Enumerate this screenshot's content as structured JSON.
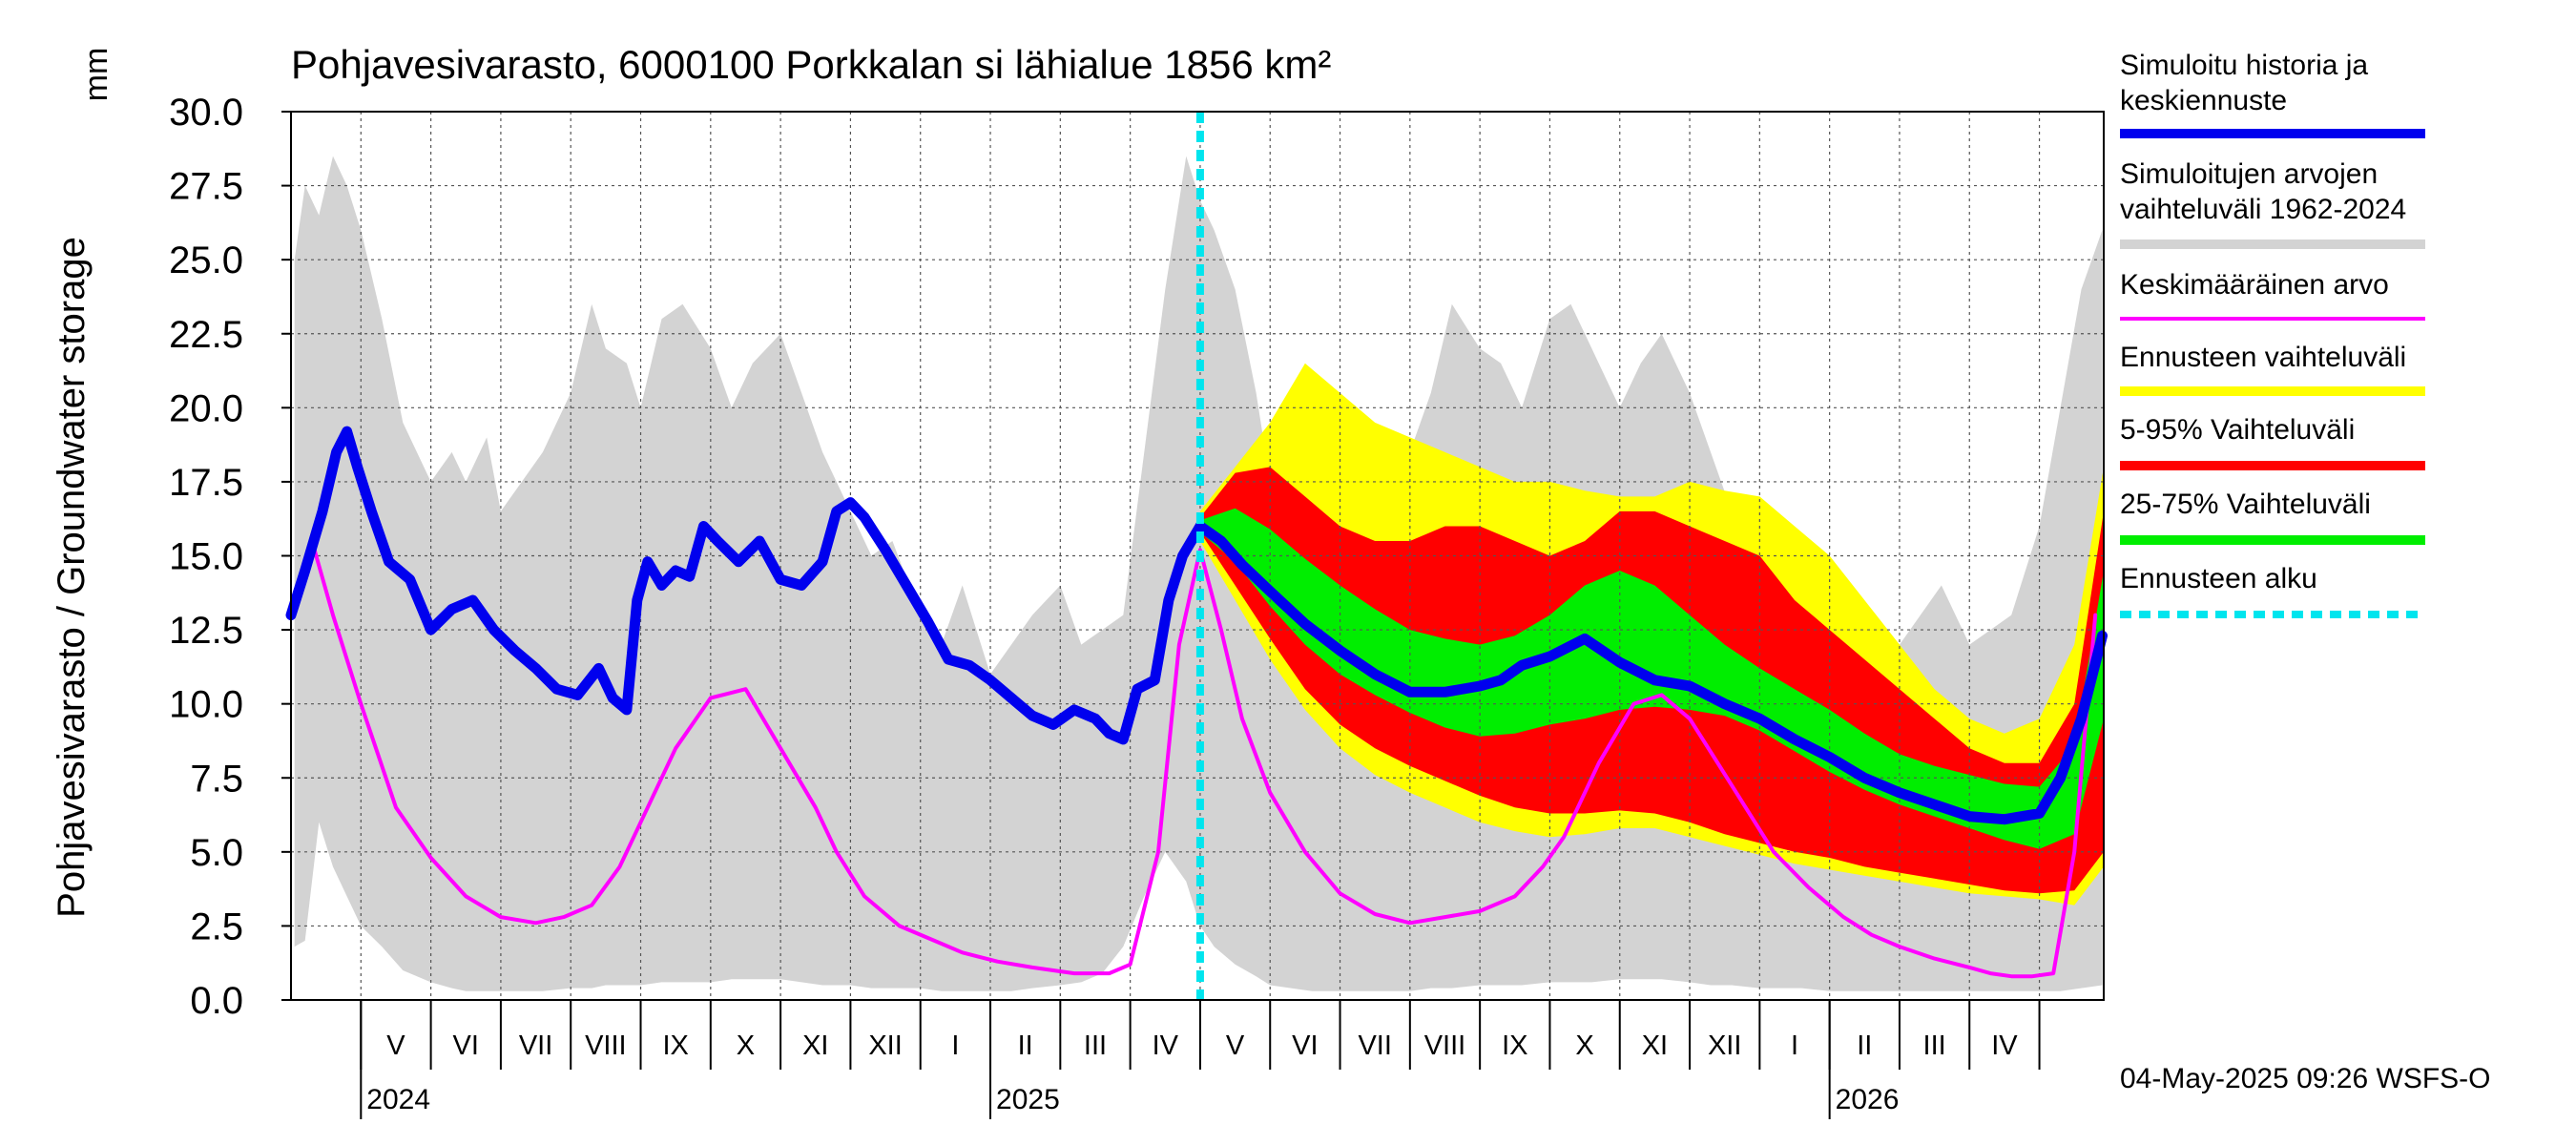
{
  "chart_data": {
    "type": "area",
    "title": "Pohjavesivarasto, 6000100 Porkkalan si lähialue 1856 km²",
    "ylabel": "Pohjavesivarasto / Groundwater storage",
    "yunit": "mm",
    "ylim": [
      0,
      30
    ],
    "yticks": [
      "30.0",
      "27.5",
      "25.0",
      "22.5",
      "20.0",
      "17.5",
      "15.0",
      "12.5",
      "10.0",
      "7.5",
      "5.0",
      "2.5",
      "0.0"
    ],
    "x_unit": "months since start of Apr 2024",
    "xlim": [
      0,
      25.92
    ],
    "forecast_start": 13,
    "months": [
      "V",
      "VI",
      "VII",
      "VIII",
      "IX",
      "X",
      "XI",
      "XII",
      "I",
      "II",
      "III",
      "IV",
      "V",
      "VI",
      "VII",
      "VIII",
      "IX",
      "X",
      "XI",
      "XII",
      "I",
      "II",
      "III",
      "IV"
    ],
    "years": [
      {
        "label": "2024",
        "month_index": 0
      },
      {
        "label": "2025",
        "month_index": 9
      },
      {
        "label": "2026",
        "month_index": 21
      }
    ],
    "series": [
      {
        "name": "Simuloitujen arvojen vaihteluväli 1962-2024",
        "kind": "band",
        "color": "#d3d3d3",
        "x": [
          0.05,
          0.2,
          0.4,
          0.6,
          0.8,
          1.0,
          1.3,
          1.6,
          2.0,
          2.3,
          2.5,
          2.8,
          3.0,
          3.3,
          3.6,
          4.0,
          4.3,
          4.5,
          4.8,
          5.0,
          5.3,
          5.6,
          6.0,
          6.3,
          6.6,
          7.0,
          7.3,
          7.6,
          8.0,
          8.3,
          8.6,
          9.0,
          9.3,
          9.6,
          10.0,
          10.3,
          10.6,
          11.0,
          11.3,
          11.6,
          11.9,
          12.2,
          12.5,
          12.8,
          13.0,
          13.2,
          13.5,
          13.8,
          14.0,
          14.3,
          14.6,
          15.0,
          15.3,
          15.6,
          16.0,
          16.3,
          16.6,
          17.0,
          17.3,
          17.6,
          18.0,
          18.3,
          18.6,
          19.0,
          19.3,
          19.6,
          20.0,
          20.3,
          20.6,
          21.0,
          21.3,
          21.6,
          22.0,
          22.3,
          22.6,
          23.0,
          23.3,
          23.6,
          24.0,
          24.3,
          24.6,
          25.0,
          25.3,
          25.6,
          25.9
        ],
        "low": [
          1.8,
          2.0,
          6.0,
          4.5,
          3.5,
          2.5,
          1.8,
          1.0,
          0.6,
          0.4,
          0.3,
          0.3,
          0.3,
          0.3,
          0.3,
          0.4,
          0.4,
          0.5,
          0.5,
          0.5,
          0.6,
          0.6,
          0.6,
          0.7,
          0.7,
          0.7,
          0.6,
          0.5,
          0.5,
          0.4,
          0.4,
          0.4,
          0.3,
          0.3,
          0.3,
          0.3,
          0.4,
          0.5,
          0.6,
          0.9,
          1.8,
          3.5,
          5.0,
          4.0,
          2.5,
          1.8,
          1.2,
          0.8,
          0.5,
          0.4,
          0.3,
          0.3,
          0.3,
          0.3,
          0.3,
          0.4,
          0.4,
          0.5,
          0.5,
          0.5,
          0.6,
          0.6,
          0.6,
          0.7,
          0.7,
          0.7,
          0.6,
          0.5,
          0.5,
          0.4,
          0.4,
          0.4,
          0.3,
          0.3,
          0.3,
          0.3,
          0.3,
          0.3,
          0.3,
          0.3,
          0.3,
          0.3,
          0.3,
          0.4,
          0.5
        ],
        "high": [
          25.0,
          27.5,
          26.5,
          28.5,
          27.5,
          26.0,
          23.0,
          19.5,
          17.5,
          18.5,
          17.5,
          19.0,
          16.5,
          17.5,
          18.5,
          20.5,
          23.5,
          22.0,
          21.5,
          20.0,
          23.0,
          23.5,
          22.0,
          20.0,
          21.5,
          22.5,
          20.5,
          18.5,
          16.5,
          15.0,
          15.5,
          13.0,
          12.0,
          14.0,
          11.0,
          12.0,
          13.0,
          14.0,
          12.0,
          12.5,
          13.0,
          18.5,
          24.0,
          28.5,
          27.0,
          26.0,
          24.0,
          20.5,
          17.5,
          18.5,
          17.5,
          19.0,
          16.5,
          17.5,
          18.5,
          20.5,
          23.5,
          22.0,
          21.5,
          20.0,
          23.0,
          23.5,
          22.0,
          20.0,
          21.5,
          22.5,
          20.5,
          18.5,
          16.5,
          15.0,
          15.5,
          13.0,
          12.0,
          14.0,
          11.0,
          12.0,
          13.0,
          14.0,
          12.0,
          12.5,
          13.0,
          16.0,
          20.0,
          24.0,
          26.0
        ]
      },
      {
        "name": "Ennusteen vaihteluväli",
        "kind": "band",
        "color": "#ffff00",
        "x": [
          13.0,
          13.5,
          14.0,
          14.5,
          15.0,
          15.5,
          16.0,
          16.5,
          17.0,
          17.5,
          18.0,
          18.5,
          19.0,
          19.5,
          20.0,
          20.5,
          21.0,
          21.5,
          22.0,
          22.5,
          23.0,
          23.5,
          24.0,
          24.5,
          25.0,
          25.5,
          25.92
        ],
        "low": [
          15.5,
          13.5,
          11.5,
          9.8,
          8.5,
          7.6,
          7.0,
          6.5,
          6.0,
          5.7,
          5.5,
          5.6,
          5.8,
          5.8,
          5.5,
          5.2,
          4.9,
          4.6,
          4.4,
          4.2,
          4.0,
          3.8,
          3.6,
          3.5,
          3.4,
          3.2,
          4.5
        ],
        "high": [
          16.5,
          18.0,
          19.5,
          21.5,
          20.5,
          19.5,
          19.0,
          18.5,
          18.0,
          17.5,
          17.5,
          17.2,
          17.0,
          17.0,
          17.5,
          17.2,
          17.0,
          16.0,
          15.0,
          13.5,
          12.0,
          10.5,
          9.5,
          9.0,
          9.5,
          12.0,
          18.0
        ]
      },
      {
        "name": "5-95% Vaihteluväli",
        "kind": "band",
        "color": "#ff0000",
        "x": [
          13.0,
          13.5,
          14.0,
          14.5,
          15.0,
          15.5,
          16.0,
          16.5,
          17.0,
          17.5,
          18.0,
          18.5,
          19.0,
          19.5,
          20.0,
          20.5,
          21.0,
          21.5,
          22.0,
          22.5,
          23.0,
          23.5,
          24.0,
          24.5,
          25.0,
          25.5,
          25.92
        ],
        "low": [
          15.8,
          14.0,
          12.2,
          10.5,
          9.3,
          8.5,
          7.9,
          7.4,
          6.9,
          6.5,
          6.3,
          6.3,
          6.4,
          6.3,
          6.0,
          5.6,
          5.3,
          5.0,
          4.8,
          4.5,
          4.3,
          4.1,
          3.9,
          3.7,
          3.6,
          3.7,
          5.0
        ],
        "high": [
          16.3,
          17.8,
          18.0,
          17.0,
          16.0,
          15.5,
          15.5,
          16.0,
          16.0,
          15.5,
          15.0,
          15.5,
          16.5,
          16.5,
          16.0,
          15.5,
          15.0,
          13.5,
          12.5,
          11.5,
          10.5,
          9.5,
          8.5,
          8.0,
          8.0,
          10.0,
          16.5
        ]
      },
      {
        "name": "25-75% Vaihteluväli",
        "kind": "band",
        "color": "#00ee00",
        "x": [
          13.0,
          13.5,
          14.0,
          14.5,
          15.0,
          15.5,
          16.0,
          16.5,
          17.0,
          17.5,
          18.0,
          18.5,
          19.0,
          19.5,
          20.0,
          20.5,
          21.0,
          21.5,
          22.0,
          22.5,
          23.0,
          23.5,
          24.0,
          24.5,
          25.0,
          25.5,
          25.92
        ],
        "low": [
          15.8,
          14.8,
          13.3,
          12.0,
          11.0,
          10.3,
          9.7,
          9.2,
          8.9,
          9.0,
          9.3,
          9.5,
          9.8,
          9.9,
          9.8,
          9.6,
          9.1,
          8.4,
          7.7,
          7.1,
          6.6,
          6.2,
          5.8,
          5.4,
          5.1,
          5.6,
          9.5
        ],
        "high": [
          16.2,
          16.6,
          15.9,
          14.9,
          14.0,
          13.2,
          12.5,
          12.2,
          12.0,
          12.3,
          13.0,
          14.0,
          14.5,
          14.0,
          13.0,
          12.0,
          11.2,
          10.5,
          9.8,
          9.0,
          8.3,
          7.9,
          7.6,
          7.3,
          7.2,
          8.6,
          14.5
        ]
      },
      {
        "name": "Keskimääräinen arvo",
        "kind": "line",
        "color": "#ff00ff",
        "x": [
          0.0,
          0.3,
          0.6,
          1.0,
          1.5,
          2.0,
          2.5,
          3.0,
          3.5,
          3.9,
          4.3,
          4.7,
          5.0,
          5.5,
          6.0,
          6.5,
          7.0,
          7.5,
          7.8,
          8.2,
          8.7,
          9.2,
          9.6,
          10.1,
          10.6,
          11.2,
          11.7,
          12.0,
          12.4,
          12.7,
          13.0,
          13.3,
          13.6,
          14.0,
          14.5,
          15.0,
          15.5,
          16.0,
          16.5,
          17.0,
          17.5,
          17.9,
          18.2,
          18.7,
          19.2,
          19.6,
          20.0,
          20.4,
          20.8,
          21.2,
          21.7,
          22.2,
          22.6,
          23.0,
          23.5,
          24.0,
          24.3,
          24.6,
          24.9,
          25.2,
          25.5,
          25.8
        ],
        "values": [
          13.0,
          15.5,
          13.0,
          10.0,
          6.5,
          4.8,
          3.5,
          2.8,
          2.6,
          2.8,
          3.2,
          4.5,
          6.0,
          8.5,
          10.2,
          10.5,
          8.5,
          6.5,
          5.0,
          3.5,
          2.5,
          2.0,
          1.6,
          1.3,
          1.1,
          0.9,
          0.9,
          1.2,
          5.0,
          12.0,
          15.2,
          12.5,
          9.5,
          7.0,
          5.0,
          3.6,
          2.9,
          2.6,
          2.8,
          3.0,
          3.5,
          4.5,
          5.5,
          8.0,
          10.0,
          10.3,
          9.5,
          8.0,
          6.5,
          5.0,
          3.8,
          2.8,
          2.2,
          1.8,
          1.4,
          1.1,
          0.9,
          0.8,
          0.8,
          0.9,
          5.0,
          13.0
        ]
      },
      {
        "name": "Simuloitu historia ja keskiennuste",
        "kind": "line",
        "color": "#0000ee",
        "x": [
          0.0,
          0.2,
          0.45,
          0.65,
          0.8,
          0.95,
          1.15,
          1.4,
          1.7,
          2.0,
          2.3,
          2.6,
          2.9,
          3.2,
          3.5,
          3.8,
          4.1,
          4.4,
          4.6,
          4.8,
          4.95,
          5.1,
          5.3,
          5.5,
          5.7,
          5.9,
          6.1,
          6.4,
          6.7,
          7.0,
          7.3,
          7.6,
          7.8,
          8.0,
          8.2,
          8.5,
          8.8,
          9.1,
          9.4,
          9.7,
          10.0,
          10.3,
          10.6,
          10.9,
          11.2,
          11.5,
          11.7,
          11.9,
          12.1,
          12.35,
          12.55,
          12.75,
          13.0,
          13.3,
          13.6,
          14.0,
          14.5,
          15.0,
          15.5,
          16.0,
          16.5,
          17.0,
          17.3,
          17.6,
          18.0,
          18.5,
          19.0,
          19.5,
          20.0,
          20.5,
          21.0,
          21.5,
          22.0,
          22.5,
          23.0,
          23.5,
          24.0,
          24.5,
          25.0,
          25.3,
          25.6,
          25.9
        ],
        "values": [
          13.0,
          14.5,
          16.5,
          18.5,
          19.2,
          18.0,
          16.5,
          14.8,
          14.2,
          12.5,
          13.2,
          13.5,
          12.5,
          11.8,
          11.2,
          10.5,
          10.3,
          11.2,
          10.2,
          9.8,
          13.5,
          14.8,
          14.0,
          14.5,
          14.3,
          16.0,
          15.5,
          14.8,
          15.5,
          14.2,
          14.0,
          14.8,
          16.5,
          16.8,
          16.3,
          15.2,
          14.0,
          12.8,
          11.5,
          11.3,
          10.8,
          10.2,
          9.6,
          9.3,
          9.8,
          9.5,
          9.0,
          8.8,
          10.5,
          10.8,
          13.5,
          15.0,
          16.0,
          15.5,
          14.7,
          13.8,
          12.7,
          11.8,
          11.0,
          10.4,
          10.4,
          10.6,
          10.8,
          11.3,
          11.6,
          12.2,
          11.4,
          10.8,
          10.6,
          10.0,
          9.5,
          8.8,
          8.2,
          7.5,
          7.0,
          6.6,
          6.2,
          6.1,
          6.3,
          7.5,
          9.5,
          12.3
        ]
      },
      {
        "name": "Ennusteen alku",
        "kind": "vline",
        "color": "#00e5ee"
      }
    ],
    "legend_position": "right",
    "grid": true
  },
  "legend": {
    "items": [
      {
        "label": "Simuloitu historia ja keskiennuste",
        "lines": [
          "Simuloitu historia ja",
          "keskiennuste"
        ],
        "color": "#0000ee"
      },
      {
        "label": "Simuloitujen arvojen vaihteluväli 1962-2024",
        "lines": [
          "Simuloitujen arvojen",
          "vaihteluväli 1962-2024"
        ],
        "color": "#d3d3d3"
      },
      {
        "label": "Keskimääräinen arvo",
        "lines": [
          "Keskimääräinen arvo"
        ],
        "color": "#ff00ff"
      },
      {
        "label": "Ennusteen vaihteluväli",
        "lines": [
          "Ennusteen vaihteluväli"
        ],
        "color": "#ffff00"
      },
      {
        "label": "5-95% Vaihteluväli",
        "lines": [
          "5-95% Vaihteluväli"
        ],
        "color": "#ff0000"
      },
      {
        "label": "25-75% Vaihteluväli",
        "lines": [
          "25-75% Vaihteluväli"
        ],
        "color": "#00ee00"
      },
      {
        "label": "Ennusteen alku",
        "lines": [
          "Ennusteen alku"
        ],
        "color": "#00e5ee"
      }
    ]
  },
  "footer": {
    "timestamp": "04-May-2025 09:26 WSFS-O"
  }
}
